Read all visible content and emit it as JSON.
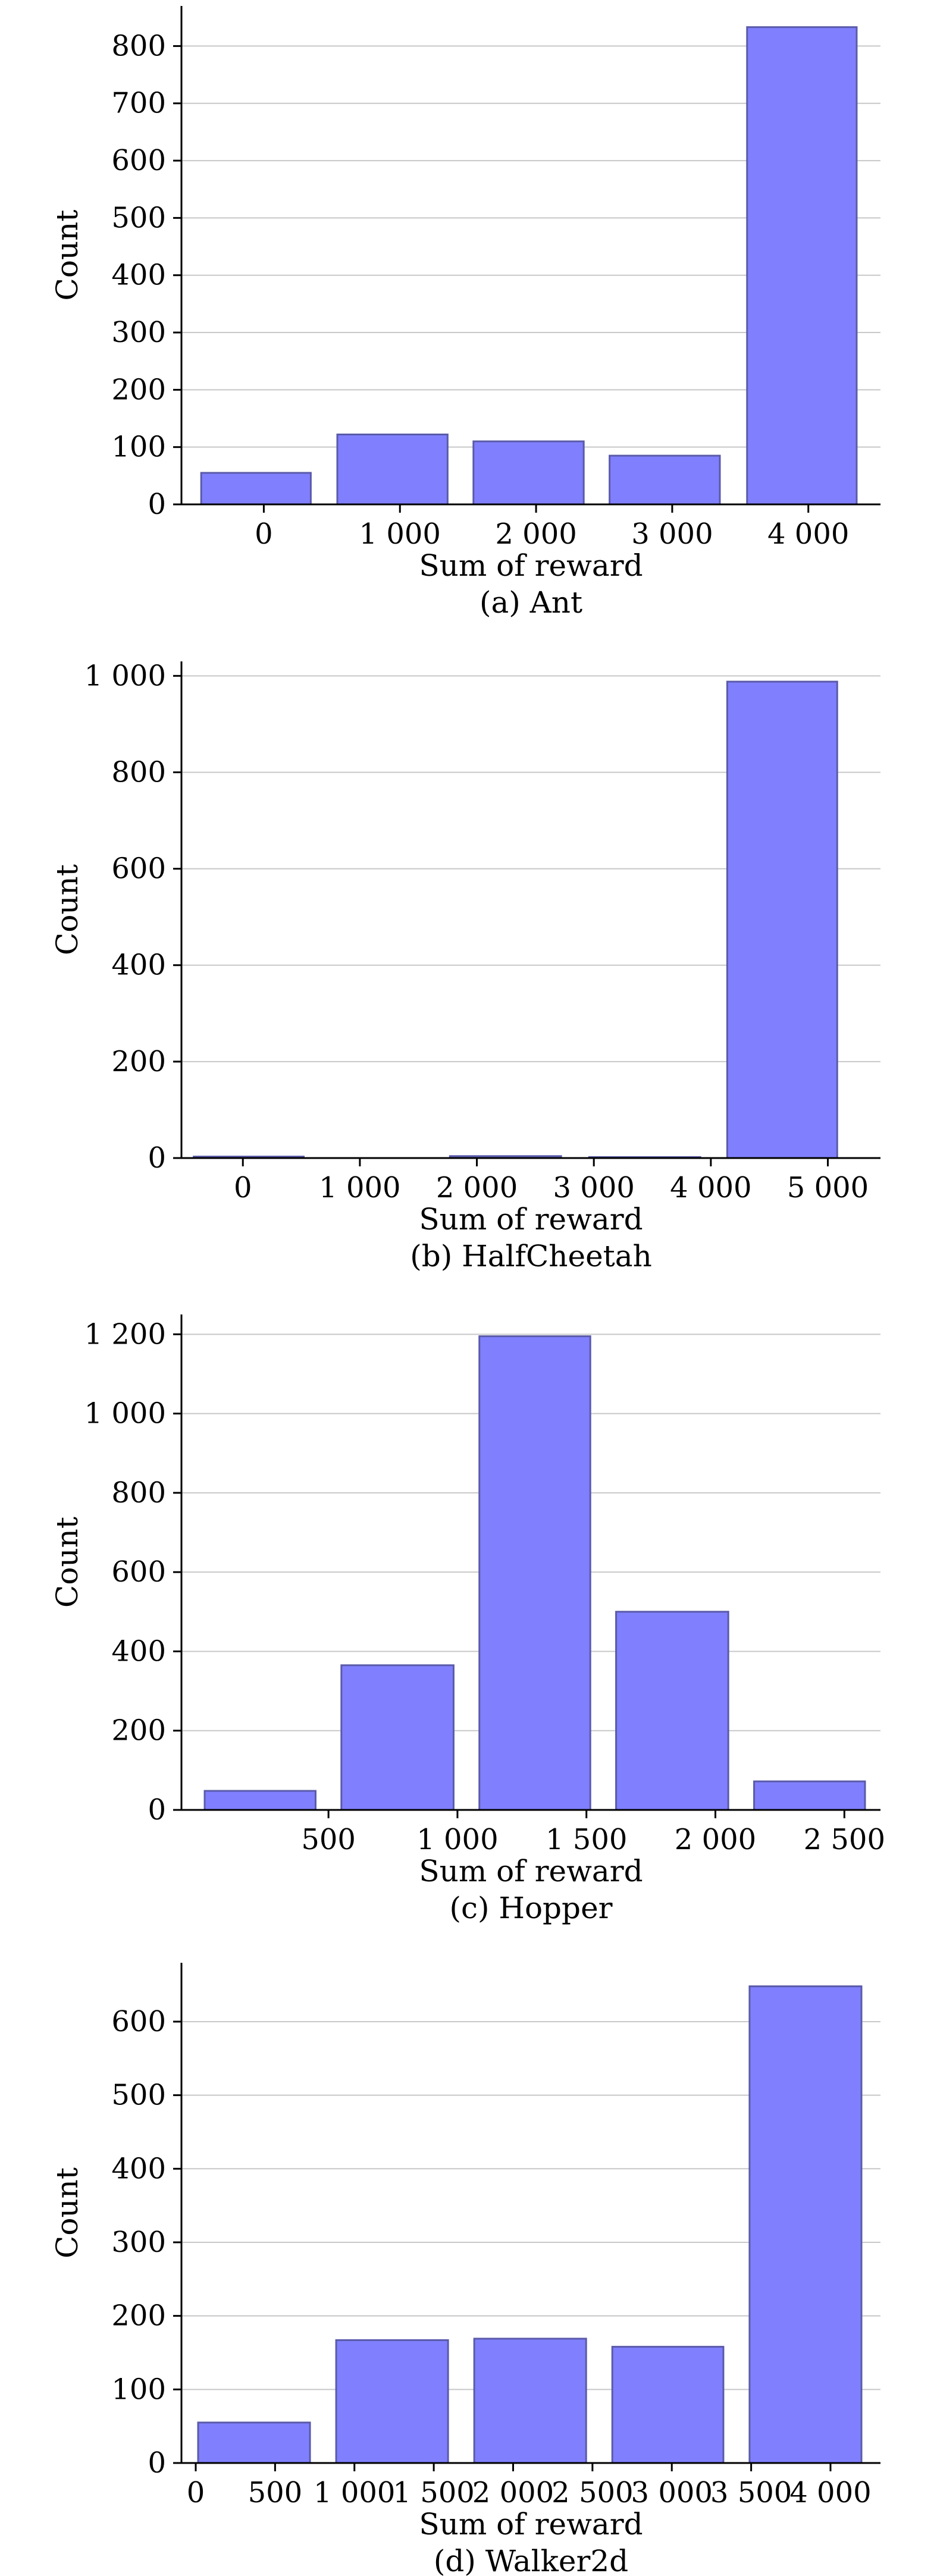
{
  "chart_data": [
    {
      "type": "bar",
      "caption": "(a) Ant",
      "xlabel": "Sum of reward",
      "ylabel": "Count",
      "bar_color": "#8080ff",
      "grid": true,
      "x_ticks": [
        0,
        1000,
        2000,
        3000,
        4000
      ],
      "x_tick_labels": [
        "0",
        "1 000",
        "2 000",
        "3 000",
        "4 000"
      ],
      "xlim": [
        -605,
        4530
      ],
      "ylim": [
        0,
        870
      ],
      "y_ticks": [
        0,
        100,
        200,
        300,
        400,
        500,
        600,
        700,
        800
      ],
      "y_tick_labels": [
        "0",
        "100",
        "200",
        "300",
        "400",
        "500",
        "600",
        "700",
        "800"
      ],
      "bins": [
        {
          "start": -460,
          "end": 345,
          "count": 55
        },
        {
          "start": 540,
          "end": 1350,
          "count": 122
        },
        {
          "start": 1540,
          "end": 2350,
          "count": 110
        },
        {
          "start": 2540,
          "end": 3350,
          "count": 85
        },
        {
          "start": 3550,
          "end": 4355,
          "count": 833
        }
      ]
    },
    {
      "type": "bar",
      "caption": "(b) HalfCheetah",
      "xlabel": "Sum of reward",
      "ylabel": "Count",
      "bar_color": "#8080ff",
      "grid": true,
      "x_ticks": [
        0,
        1000,
        2000,
        3000,
        4000,
        5000
      ],
      "x_tick_labels": [
        "0",
        "1 000",
        "2 000",
        "3 000",
        "4 000",
        "5 000"
      ],
      "xlim": [
        -525,
        5450
      ],
      "ylim": [
        0,
        1030
      ],
      "y_ticks": [
        0,
        200,
        400,
        600,
        800,
        1000
      ],
      "y_tick_labels": [
        "0",
        "200",
        "400",
        "600",
        "800",
        "1 000"
      ],
      "bins": [
        {
          "start": -420,
          "end": 520,
          "count": 3
        },
        {
          "start": 600,
          "end": 1540,
          "count": 0
        },
        {
          "start": 1770,
          "end": 2720,
          "count": 4
        },
        {
          "start": 2960,
          "end": 3910,
          "count": 2
        },
        {
          "start": 4140,
          "end": 5080,
          "count": 988
        }
      ]
    },
    {
      "type": "bar",
      "caption": "(c) Hopper",
      "xlabel": "Sum of reward",
      "ylabel": "Count",
      "bar_color": "#8080ff",
      "grid": true,
      "x_ticks": [
        500,
        1000,
        1500,
        2000,
        2500
      ],
      "x_tick_labels": [
        "500",
        "1 000",
        "1 500",
        "2 000",
        "2 500"
      ],
      "xlim": [
        -70,
        2640
      ],
      "ylim": [
        0,
        1250
      ],
      "y_ticks": [
        0,
        200,
        400,
        600,
        800,
        1000,
        1200
      ],
      "y_tick_labels": [
        "0",
        "200",
        "400",
        "600",
        "800",
        "1 000",
        "1 200"
      ],
      "bins": [
        {
          "start": 20,
          "end": 450,
          "count": 48
        },
        {
          "start": 550,
          "end": 985,
          "count": 365
        },
        {
          "start": 1085,
          "end": 1515,
          "count": 1195
        },
        {
          "start": 1615,
          "end": 2050,
          "count": 500
        },
        {
          "start": 2150,
          "end": 2580,
          "count": 72
        }
      ]
    },
    {
      "type": "bar",
      "caption": "(d) Walker2d",
      "xlabel": "Sum of reward",
      "ylabel": "Count",
      "bar_color": "#8080ff",
      "grid": true,
      "x_ticks": [
        0,
        500,
        1000,
        1500,
        2000,
        2500,
        3000,
        3500,
        4000
      ],
      "x_tick_labels": [
        "0",
        "500",
        "1 000",
        "1 500",
        "2 000",
        "2 500",
        "3 000",
        "3 500",
        "4 000"
      ],
      "xlim": [
        -90,
        4315
      ],
      "ylim": [
        0,
        680
      ],
      "y_ticks": [
        0,
        100,
        200,
        300,
        400,
        500,
        600
      ],
      "y_tick_labels": [
        "0",
        "100",
        "200",
        "300",
        "400",
        "500",
        "600"
      ],
      "bins": [
        {
          "start": 15,
          "end": 720,
          "count": 55
        },
        {
          "start": 885,
          "end": 1590,
          "count": 167
        },
        {
          "start": 1755,
          "end": 2460,
          "count": 169
        },
        {
          "start": 2625,
          "end": 3325,
          "count": 158
        },
        {
          "start": 3490,
          "end": 4195,
          "count": 648
        }
      ]
    }
  ]
}
